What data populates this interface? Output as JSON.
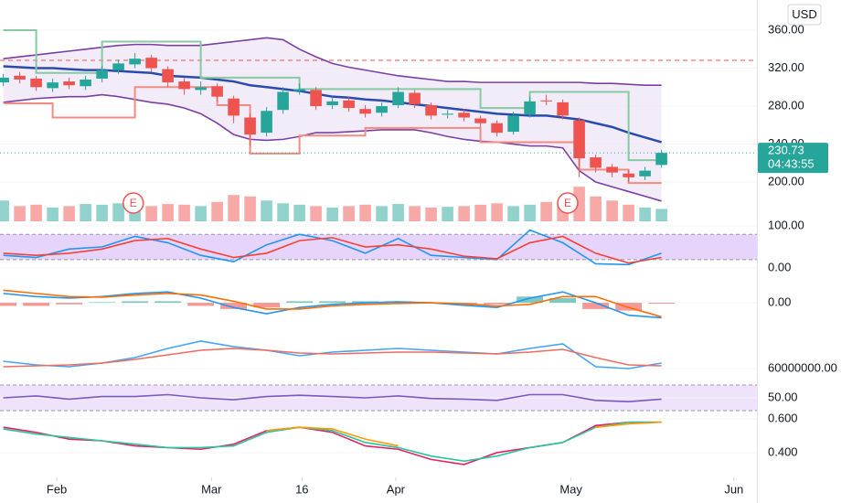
{
  "chart_data": [
    {
      "type": "candlestick",
      "currency": "USD",
      "last_price": 230.73,
      "countdown": "04:43:55",
      "xlim": [
        0,
        92
      ],
      "xticks": [
        {
          "value": 6.9,
          "label": "Feb"
        },
        {
          "value": 25.7,
          "label": "Mar"
        },
        {
          "value": 36.7,
          "label": "16"
        },
        {
          "value": 48.1,
          "label": "Apr"
        },
        {
          "value": 69.4,
          "label": "May"
        },
        {
          "value": 89.2,
          "label": "Jun"
        }
      ],
      "ylim": [
        158.6,
        377.4
      ],
      "yticks": [
        {
          "value": 360,
          "label": "360.00"
        },
        {
          "value": 320,
          "label": "320.00"
        },
        {
          "value": 280,
          "label": "280.00"
        },
        {
          "value": 240,
          "label": "240.00"
        },
        {
          "value": 200,
          "label": "200.00"
        }
      ],
      "up_color": "#26a69a",
      "down_color": "#ef5350",
      "x": [
        0.4,
        2.4,
        4.4,
        6.4,
        8.4,
        10.4,
        12.4,
        14.4,
        16.4,
        18.4,
        20.4,
        22.4,
        24.4,
        26.4,
        28.4,
        30.4,
        32.4,
        34.4,
        36.4,
        38.4,
        40.4,
        42.4,
        44.4,
        46.4,
        48.4,
        50.4,
        52.4,
        54.4,
        56.4,
        58.4,
        60.4,
        62.4,
        64.4,
        66.4,
        68.4,
        70.4,
        72.4,
        74.4,
        76.4,
        78.4,
        80.4
      ],
      "open": [
        305,
        312,
        309,
        299,
        306,
        301,
        309,
        318,
        324,
        331,
        319,
        306,
        297,
        301,
        288,
        268,
        252,
        276,
        296,
        297,
        281,
        286,
        277,
        273,
        281,
        294,
        281,
        271,
        273,
        267,
        262,
        253,
        271,
        286,
        284,
        265,
        226,
        216,
        209,
        206,
        218
      ],
      "high": [
        314,
        316,
        312,
        309,
        310,
        312,
        322,
        329,
        336,
        334,
        322,
        310,
        306,
        304,
        291,
        272,
        279,
        300,
        304,
        300,
        290,
        290,
        281,
        284,
        300,
        297,
        284,
        276,
        277,
        270,
        265,
        274,
        290,
        292,
        287,
        268,
        229,
        219,
        213,
        216,
        234
      ],
      "low": [
        301,
        304,
        296,
        295,
        298,
        297,
        305,
        314,
        320,
        316,
        300,
        292,
        292,
        285,
        262,
        238,
        248,
        272,
        292,
        276,
        277,
        274,
        268,
        269,
        278,
        278,
        266,
        267,
        264,
        258,
        248,
        250,
        268,
        281,
        266,
        205,
        210,
        205,
        200,
        202,
        215
      ],
      "close": [
        310,
        308,
        300,
        305,
        302,
        308,
        318,
        325,
        330,
        320,
        305,
        298,
        300,
        290,
        270,
        250,
        275,
        295,
        298,
        280,
        285,
        278,
        272,
        280,
        295,
        282,
        270,
        272,
        268,
        262,
        252,
        270,
        285,
        285,
        270,
        225,
        215,
        210,
        205,
        212,
        230.73
      ],
      "volume": [
        30,
        22,
        24,
        20,
        22,
        25,
        24,
        26,
        28,
        22,
        25,
        24,
        22,
        28,
        38,
        36,
        30,
        26,
        24,
        22,
        20,
        22,
        24,
        22,
        25,
        22,
        20,
        21,
        22,
        24,
        26,
        22,
        24,
        28,
        30,
        50,
        36,
        30,
        24,
        20,
        18
      ],
      "vlim": [
        0,
        300
      ],
      "band_fill": "#ede4f7",
      "series": [
        {
          "name": "BB Upper",
          "style": "line",
          "color": "#7b3fa3",
          "values": [
            330,
            332,
            334,
            336,
            338,
            340,
            342,
            344,
            345,
            345,
            344,
            344,
            344,
            346,
            348,
            350,
            352,
            350,
            340,
            332,
            325,
            321,
            318,
            315,
            312,
            310,
            308,
            306,
            306,
            305,
            305,
            305,
            305,
            305,
            305,
            305,
            304,
            304,
            303,
            302,
            302
          ]
        },
        {
          "name": "BB Lower",
          "style": "line",
          "color": "#7b3fa3",
          "values": [
            284,
            286,
            288,
            289,
            290,
            290,
            292,
            290,
            287,
            284,
            282,
            278,
            272,
            262,
            250,
            245,
            244,
            245,
            248,
            252,
            252,
            253,
            254,
            255,
            255,
            255,
            252,
            248,
            245,
            243,
            242,
            240,
            238,
            238,
            236,
            212,
            200,
            195,
            190,
            185,
            180
          ]
        },
        {
          "name": "BB Basis",
          "style": "line",
          "color": "#2a4bab",
          "width": 2.5,
          "values": [
            322,
            321,
            320,
            320,
            319,
            318,
            318,
            317,
            316,
            315,
            312,
            311,
            310,
            308,
            306,
            302,
            300,
            298,
            296,
            293,
            290,
            289,
            287,
            286,
            284,
            282,
            280,
            278,
            276,
            274,
            272,
            271,
            270,
            270,
            268,
            266,
            262,
            258,
            252,
            247,
            242
          ]
        },
        {
          "name": "Channel Upper",
          "style": "step",
          "color": "#86c9a2",
          "width": 2,
          "values": [
            360,
            360,
            315,
            315,
            315,
            315,
            348,
            348,
            348,
            348,
            348,
            348,
            310,
            310,
            310,
            310,
            310,
            310,
            298,
            298,
            298,
            298,
            298,
            298,
            298,
            298,
            298,
            298,
            298,
            278,
            278,
            278,
            295,
            295,
            295,
            295,
            295,
            295,
            223,
            223,
            223
          ]
        },
        {
          "name": "Channel Lower",
          "style": "step",
          "color": "#f28b82",
          "width": 2,
          "values": [
            283,
            283,
            283,
            268,
            268,
            268,
            268,
            268,
            300,
            300,
            300,
            300,
            300,
            281,
            281,
            230,
            230,
            230,
            249,
            249,
            249,
            249,
            257,
            257,
            257,
            257,
            257,
            257,
            257,
            242,
            242,
            242,
            242,
            242,
            242,
            213,
            213,
            213,
            199,
            199,
            199
          ]
        }
      ],
      "hline": {
        "value": 328.2,
        "color": "#ef5350"
      },
      "earnings": [
        {
          "x": 16.2,
          "label": "E"
        },
        {
          "x": 69.0,
          "label": "E"
        }
      ]
    },
    {
      "type": "line",
      "ylim": [
        -4.3,
        106.5
      ],
      "yticks": [
        {
          "value": 100,
          "label": "100.00"
        },
        {
          "value": 0,
          "label": "0.00"
        }
      ],
      "band": [
        20,
        80
      ],
      "band_color": "#e6d4fb",
      "x": [
        0.4,
        4.4,
        8.4,
        12.4,
        16.4,
        20.4,
        24.4,
        28.4,
        32.4,
        36.4,
        40.4,
        44.4,
        48.4,
        52.4,
        56.4,
        60.4,
        64.4,
        68.4,
        72.4,
        76.4,
        80.4
      ],
      "series": [
        {
          "name": "K",
          "style": "line",
          "color": "#2196f3",
          "values": [
            30,
            25,
            45,
            50,
            75,
            60,
            30,
            15,
            55,
            80,
            65,
            35,
            70,
            30,
            25,
            20,
            90,
            60,
            10,
            8,
            35
          ]
        },
        {
          "name": "D",
          "style": "line",
          "color": "#f44336",
          "values": [
            35,
            30,
            35,
            45,
            65,
            70,
            45,
            25,
            35,
            65,
            72,
            50,
            55,
            45,
            28,
            22,
            60,
            75,
            35,
            12,
            25
          ]
        }
      ]
    },
    {
      "type": "line",
      "ylim": [
        -7.6,
        10
      ],
      "yticks": [
        {
          "value": 0,
          "label": "0.00"
        }
      ],
      "x": [
        0.4,
        4.4,
        8.4,
        12.4,
        16.4,
        20.4,
        24.4,
        28.4,
        32.4,
        36.4,
        40.4,
        44.4,
        48.4,
        52.4,
        56.4,
        60.4,
        64.4,
        68.4,
        72.4,
        76.4,
        80.4
      ],
      "series": [
        {
          "name": "Histogram",
          "style": "histogram",
          "color": "#26a69a",
          "negative_color": "#ef5350",
          "values": [
            -1,
            -1,
            -0.5,
            0.2,
            0.5,
            0.5,
            -1,
            -2,
            -1.5,
            0.5,
            0.5,
            0.5,
            0.5,
            0,
            -0.5,
            -0.5,
            2,
            1.5,
            -2,
            -2.5,
            -0.3
          ]
        },
        {
          "name": "MACD",
          "style": "line",
          "color": "#2196f3",
          "values": [
            3,
            2,
            1.5,
            2,
            3,
            3.5,
            1.5,
            -1.5,
            -3.5,
            -1.5,
            -0.5,
            0,
            0.3,
            0,
            -0.8,
            -1.5,
            1.5,
            3.5,
            0,
            -4,
            -4.8
          ]
        },
        {
          "name": "Signal",
          "style": "line",
          "color": "#ff6d00",
          "values": [
            4,
            3,
            2,
            1.8,
            2.5,
            3,
            2.5,
            0.5,
            -2,
            -2,
            -1,
            -0.5,
            -0.2,
            0,
            -0.3,
            -1,
            -0.5,
            2,
            2,
            -1.5,
            -4.5
          ]
        }
      ]
    },
    {
      "type": "line",
      "ylim": [
        47000000,
        103000000
      ],
      "yticks": [
        {
          "value": 60000000,
          "label": "60000000.00"
        }
      ],
      "x": [
        0.4,
        4.4,
        8.4,
        12.4,
        16.4,
        20.4,
        24.4,
        28.4,
        32.4,
        36.4,
        40.4,
        44.4,
        48.4,
        52.4,
        56.4,
        60.4,
        64.4,
        68.4,
        72.4,
        76.4,
        80.4
      ],
      "series": [
        {
          "name": "OBV",
          "style": "line",
          "color": "#42a5f5",
          "values": [
            68000000,
            64000000,
            62000000,
            66000000,
            72000000,
            82000000,
            90000000,
            84000000,
            80000000,
            74000000,
            78000000,
            80000000,
            82000000,
            80000000,
            78000000,
            76000000,
            82000000,
            87000000,
            62000000,
            60000000,
            66000000
          ]
        },
        {
          "name": "OBV MA",
          "style": "line",
          "color": "#ef6c60",
          "values": [
            62000000,
            63000000,
            64000000,
            66000000,
            70000000,
            75000000,
            80000000,
            82000000,
            80000000,
            77000000,
            76000000,
            77000000,
            78000000,
            78000000,
            77000000,
            76000000,
            78000000,
            81000000,
            72000000,
            64000000,
            63000000
          ]
        }
      ]
    },
    {
      "type": "line",
      "ylim": [
        25.7,
        74.3
      ],
      "yticks": [
        {
          "value": 50,
          "label": "50.00"
        }
      ],
      "band": [
        30,
        70
      ],
      "band_color": "#efe3fb",
      "x": [
        0.4,
        4.4,
        8.4,
        12.4,
        16.4,
        20.4,
        24.4,
        28.4,
        32.4,
        36.4,
        40.4,
        44.4,
        48.4,
        52.4,
        56.4,
        60.4,
        64.4,
        68.4,
        72.4,
        76.4,
        80.4
      ],
      "series": [
        {
          "name": "RSI",
          "style": "line",
          "color": "#7e57c2",
          "values": [
            50,
            53,
            48,
            52,
            52,
            55,
            50,
            47,
            52,
            54,
            52,
            50,
            53,
            49,
            48,
            46,
            55,
            55,
            46,
            44,
            48
          ]
        }
      ]
    },
    {
      "type": "line",
      "ylim": [
        0.254,
        0.632
      ],
      "yticks": [
        {
          "value": 0.6,
          "label": "0.600"
        },
        {
          "value": 0.4,
          "label": "0.400"
        }
      ],
      "x": [
        0.4,
        4.4,
        8.4,
        12.4,
        16.4,
        20.4,
        24.4,
        28.4,
        32.4,
        36.4,
        40.4,
        44.4,
        48.4,
        52.4,
        56.4,
        60.4,
        64.4,
        68.4,
        72.4,
        76.4,
        80.4
      ],
      "series": [
        {
          "name": "Fast",
          "style": "line",
          "color": "#e91e63",
          "values": [
            0.55,
            0.52,
            0.48,
            0.47,
            0.44,
            0.43,
            0.42,
            0.45,
            0.53,
            0.55,
            0.52,
            0.44,
            0.42,
            0.36,
            0.33,
            0.4,
            0.43,
            0.46,
            0.56,
            0.58,
            0.58
          ]
        },
        {
          "name": "Slow",
          "style": "line",
          "color": "#26c6a0",
          "values": [
            0.54,
            0.51,
            0.49,
            0.47,
            0.45,
            0.43,
            0.43,
            0.44,
            0.52,
            0.55,
            0.53,
            0.46,
            0.43,
            0.38,
            0.35,
            0.38,
            0.43,
            0.46,
            0.55,
            0.58,
            0.58
          ]
        },
        {
          "name": "Trend",
          "style": "line",
          "color": "#ff9800",
          "values": [
            null,
            null,
            null,
            null,
            null,
            null,
            null,
            null,
            0.53,
            0.55,
            0.54,
            0.48,
            0.44,
            null,
            null,
            null,
            null,
            null,
            0.55,
            0.57,
            0.58
          ]
        }
      ]
    }
  ]
}
